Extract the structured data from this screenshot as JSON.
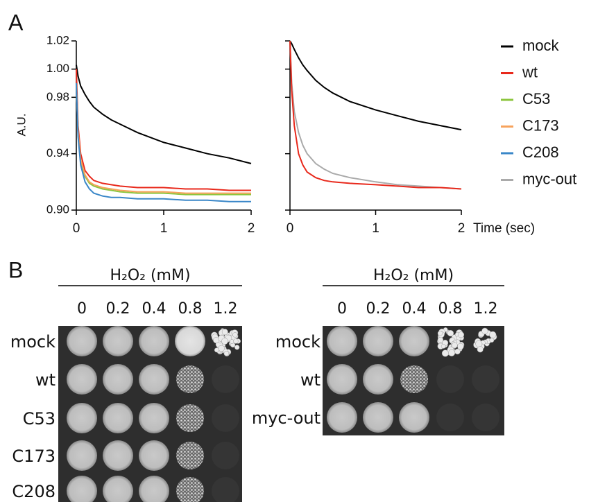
{
  "panel_labels": [
    "A",
    "B"
  ],
  "chart_data": [
    {
      "type": "line",
      "y_label": "A.U.",
      "x": [
        0,
        0.02,
        0.05,
        0.1,
        0.15,
        0.2,
        0.3,
        0.4,
        0.5,
        0.7,
        1.0,
        1.25,
        1.5,
        1.75,
        2.0
      ],
      "series": [
        {
          "name": "mock",
          "color": "#000000",
          "values": [
            1.003,
            0.995,
            0.988,
            0.982,
            0.977,
            0.973,
            0.968,
            0.964,
            0.961,
            0.955,
            0.948,
            0.944,
            0.94,
            0.937,
            0.933
          ]
        },
        {
          "name": "wt",
          "color": "#e8291c",
          "values": [
            1.0,
            0.96,
            0.94,
            0.928,
            0.924,
            0.921,
            0.919,
            0.918,
            0.917,
            0.916,
            0.916,
            0.915,
            0.915,
            0.914,
            0.914
          ]
        },
        {
          "name": "C53",
          "color": "#8dc63f",
          "values": [
            0.99,
            0.955,
            0.935,
            0.924,
            0.919,
            0.917,
            0.915,
            0.914,
            0.913,
            0.912,
            0.912,
            0.911,
            0.911,
            0.911,
            0.911
          ]
        },
        {
          "name": "C173",
          "color": "#f7a35c",
          "values": [
            0.99,
            0.956,
            0.936,
            0.925,
            0.92,
            0.918,
            0.916,
            0.915,
            0.914,
            0.913,
            0.913,
            0.912,
            0.912,
            0.912,
            0.912
          ]
        },
        {
          "name": "C208",
          "color": "#3a87c8",
          "values": [
            0.99,
            0.952,
            0.932,
            0.92,
            0.915,
            0.912,
            0.91,
            0.909,
            0.909,
            0.908,
            0.908,
            0.907,
            0.907,
            0.906,
            0.906
          ]
        }
      ],
      "xlim": [
        0,
        2
      ],
      "ylim": [
        0.9,
        1.02
      ],
      "xticks": [
        0,
        1,
        2
      ],
      "yticks": [
        {
          "value": 0.9,
          "label": "0.90"
        },
        0.94,
        0.98,
        {
          "value": 1.0,
          "label": "1.00"
        },
        1.02
      ]
    },
    {
      "type": "line",
      "x_label": "Time (sec)",
      "x": [
        0,
        0.02,
        0.05,
        0.1,
        0.15,
        0.2,
        0.3,
        0.4,
        0.5,
        0.7,
        1.0,
        1.25,
        1.5,
        1.75,
        2.0
      ],
      "series": [
        {
          "name": "mock",
          "color": "#000000",
          "values": [
            1.02,
            1.018,
            1.014,
            1.008,
            1.003,
            0.999,
            0.992,
            0.987,
            0.983,
            0.977,
            0.971,
            0.967,
            0.963,
            0.96,
            0.957
          ]
        },
        {
          "name": "myc-out",
          "color": "#aaaaaa",
          "values": [
            1.02,
            0.99,
            0.97,
            0.955,
            0.946,
            0.94,
            0.933,
            0.929,
            0.926,
            0.923,
            0.92,
            0.918,
            0.917,
            0.916,
            0.915
          ]
        },
        {
          "name": "wt",
          "color": "#e8291c",
          "values": [
            1.02,
            0.985,
            0.96,
            0.94,
            0.932,
            0.927,
            0.923,
            0.921,
            0.92,
            0.919,
            0.918,
            0.917,
            0.916,
            0.916,
            0.915
          ]
        }
      ],
      "xlim": [
        0,
        2
      ],
      "ylim": [
        0.9,
        1.02
      ],
      "xticks": [
        0,
        1,
        2
      ]
    }
  ],
  "panel_b": [
    {
      "header": "H₂O₂ (mM)",
      "concentrations": [
        "0",
        "0.2",
        "0.4",
        "0.8",
        "1.2"
      ],
      "rows": [
        "mock",
        "wt",
        "C53",
        "C173",
        "C208"
      ]
    },
    {
      "header": "H₂O₂ (mM)",
      "concentrations": [
        "0",
        "0.2",
        "0.4",
        "0.8",
        "1.2"
      ],
      "rows": [
        "mock",
        "wt",
        "myc-out"
      ]
    }
  ]
}
